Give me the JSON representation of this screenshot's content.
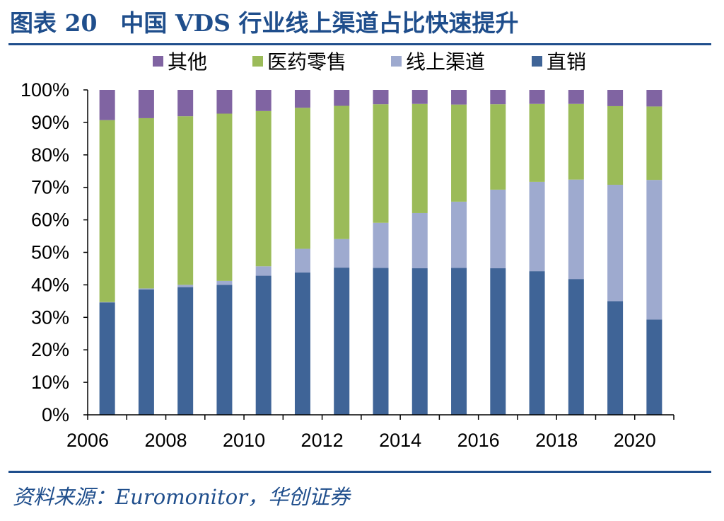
{
  "title": "图表 20　中国 VDS 行业线上渠道占比快速提升",
  "source": "资料来源：Euromonitor，华创证券",
  "chart_data": {
    "type": "bar",
    "stacked": true,
    "percent": true,
    "categories": [
      "2006",
      "2007",
      "2008",
      "2009",
      "2010",
      "2011",
      "2012",
      "2013",
      "2014",
      "2015",
      "2016",
      "2017",
      "2018",
      "2019",
      "2020"
    ],
    "x_tick_labels": [
      "2006",
      "2008",
      "2010",
      "2012",
      "2014",
      "2016",
      "2018",
      "2020"
    ],
    "y_tick_labels": [
      "0%",
      "10%",
      "20%",
      "30%",
      "40%",
      "50%",
      "60%",
      "70%",
      "80%",
      "90%",
      "100%"
    ],
    "ylim": [
      0,
      100
    ],
    "legend_position": "top",
    "series": [
      {
        "name": "直销",
        "color": "#3f6497",
        "values": [
          34.6,
          38.6,
          39.3,
          40.0,
          42.8,
          43.8,
          45.3,
          45.2,
          45.1,
          45.2,
          45.1,
          44.2,
          41.8,
          35.0,
          29.3
        ]
      },
      {
        "name": "线上渠道",
        "color": "#9eaacf",
        "values": [
          0.1,
          0.3,
          0.7,
          1.2,
          2.9,
          7.3,
          8.8,
          13.9,
          17.0,
          20.4,
          24.2,
          27.5,
          30.6,
          35.8,
          43.0
        ]
      },
      {
        "name": "医药零售",
        "color": "#9bbb59",
        "values": [
          56.0,
          52.4,
          51.9,
          51.5,
          47.8,
          43.4,
          41.0,
          36.5,
          33.6,
          29.9,
          26.3,
          24.0,
          23.3,
          24.2,
          22.6
        ]
      },
      {
        "name": "其他",
        "color": "#8064a2",
        "values": [
          9.3,
          8.7,
          8.1,
          7.3,
          6.5,
          5.5,
          4.9,
          4.4,
          4.3,
          4.5,
          4.4,
          4.3,
          4.3,
          5.0,
          5.1
        ]
      }
    ],
    "legend_order": [
      "其他",
      "医药零售",
      "线上渠道",
      "直销"
    ]
  }
}
